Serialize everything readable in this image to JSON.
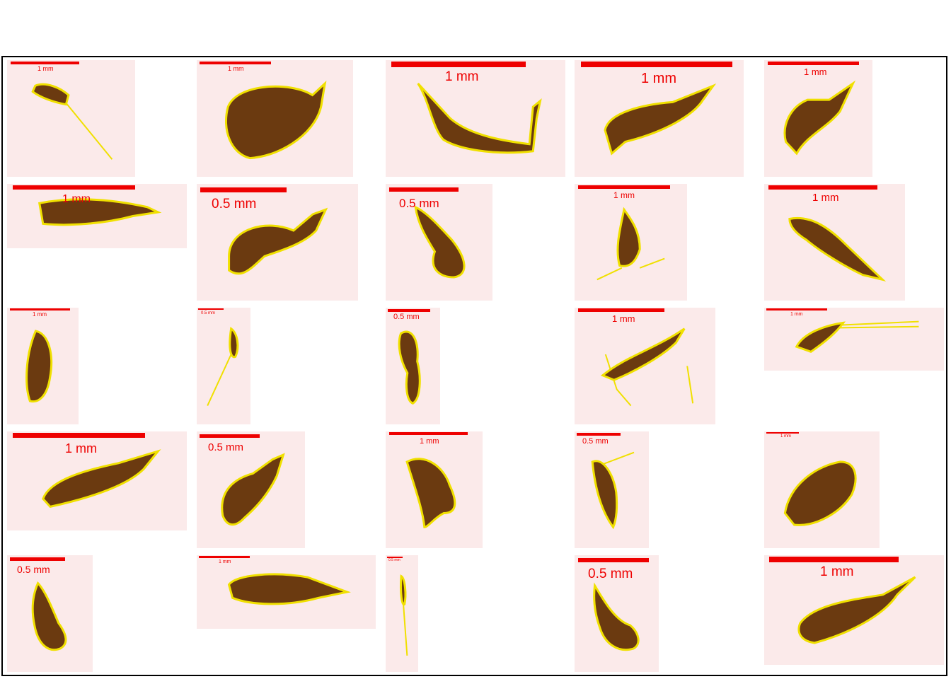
{
  "colors": {
    "scale_bar": "#ee0000",
    "tile_background": "#fbeaea",
    "specimen_body": "#6b3a10",
    "specimen_dark": "#3e1e08",
    "specimen_outline": "#f0e000"
  },
  "tiles": [
    {
      "name": "specimen-r1-c1",
      "scale_label": "1 mm"
    },
    {
      "name": "specimen-r1-c2",
      "scale_label": "1 mm"
    },
    {
      "name": "specimen-r1-c3",
      "scale_label": "1 mm"
    },
    {
      "name": "specimen-r1-c4",
      "scale_label": "1 mm"
    },
    {
      "name": "specimen-r1-c5",
      "scale_label": "1 mm"
    },
    {
      "name": "specimen-r2-c1",
      "scale_label": "1 mm"
    },
    {
      "name": "specimen-r2-c2",
      "scale_label": "0.5 mm"
    },
    {
      "name": "specimen-r2-c3",
      "scale_label": "0.5 mm"
    },
    {
      "name": "specimen-r2-c4",
      "scale_label": "1 mm"
    },
    {
      "name": "specimen-r2-c5",
      "scale_label": "1 mm"
    },
    {
      "name": "specimen-r3-c1",
      "scale_label": "1 mm"
    },
    {
      "name": "specimen-r3-c2",
      "scale_label": "0.5 mm"
    },
    {
      "name": "specimen-r3-c3",
      "scale_label": "0.5 mm"
    },
    {
      "name": "specimen-r3-c4",
      "scale_label": "1 mm"
    },
    {
      "name": "specimen-r3-c5",
      "scale_label": "1 mm"
    },
    {
      "name": "specimen-r4-c1",
      "scale_label": "1 mm"
    },
    {
      "name": "specimen-r4-c2",
      "scale_label": "0.5 mm"
    },
    {
      "name": "specimen-r4-c3",
      "scale_label": "1 mm"
    },
    {
      "name": "specimen-r4-c4",
      "scale_label": "0.5 mm"
    },
    {
      "name": "specimen-r4-c5",
      "scale_label": "1 mm"
    },
    {
      "name": "specimen-r5-c1",
      "scale_label": "0.5 mm"
    },
    {
      "name": "specimen-r5-c2",
      "scale_label": "1 mm"
    },
    {
      "name": "specimen-r5-c3",
      "scale_label": "0.5 mm"
    },
    {
      "name": "specimen-r5-c4",
      "scale_label": "0.5 mm"
    },
    {
      "name": "specimen-r5-c5",
      "scale_label": "1 mm"
    }
  ]
}
